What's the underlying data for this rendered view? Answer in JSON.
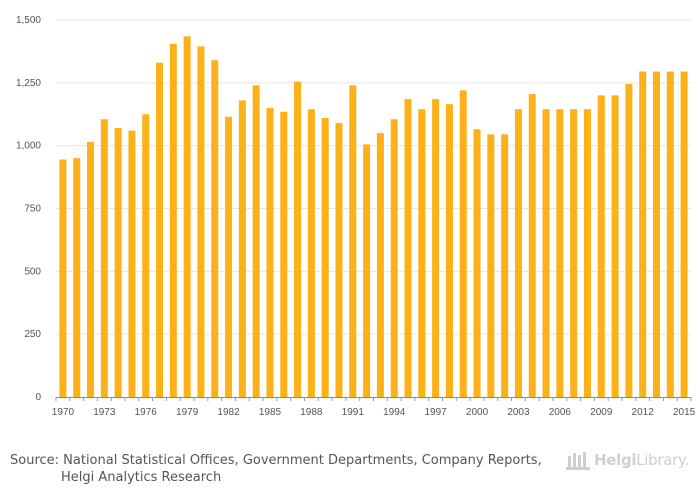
{
  "chart_data": {
    "type": "bar",
    "categories": [
      "1970",
      "1971",
      "1972",
      "1973",
      "1974",
      "1975",
      "1976",
      "1977",
      "1978",
      "1979",
      "1980",
      "1981",
      "1982",
      "1983",
      "1984",
      "1985",
      "1986",
      "1987",
      "1988",
      "1989",
      "1990",
      "1991",
      "1992",
      "1993",
      "1994",
      "1995",
      "1996",
      "1997",
      "1998",
      "1999",
      "2000",
      "2001",
      "2002",
      "2003",
      "2004",
      "2005",
      "2006",
      "2007",
      "2008",
      "2009",
      "2010",
      "2011",
      "2012",
      "2013",
      "2014",
      "2015"
    ],
    "values": [
      945,
      950,
      1015,
      1105,
      1070,
      1060,
      1125,
      1330,
      1405,
      1435,
      1395,
      1340,
      1115,
      1180,
      1240,
      1150,
      1135,
      1255,
      1145,
      1110,
      1090,
      1240,
      1005,
      1050,
      1105,
      1185,
      1145,
      1185,
      1165,
      1220,
      1065,
      1045,
      1045,
      1145,
      1205,
      1145,
      1145,
      1145,
      1145,
      1200,
      1200,
      1245,
      1295,
      1295,
      1295,
      1295
    ],
    "x_tick_labels": [
      "1970",
      "1973",
      "1976",
      "1979",
      "1982",
      "1985",
      "1988",
      "1991",
      "1994",
      "1997",
      "2000",
      "2003",
      "2006",
      "2009",
      "2012",
      "2015"
    ],
    "y_ticks": [
      0,
      250,
      500,
      750,
      1000,
      1250,
      1500
    ],
    "y_tick_labels": [
      "0",
      "250",
      "500",
      "750",
      "1,000",
      "1,250",
      "1,500"
    ],
    "ylim": [
      0,
      1500
    ],
    "title": "",
    "xlabel": "",
    "ylabel": "",
    "grid": true,
    "bar_color": "#FBB117"
  },
  "footer": {
    "source_line1": "Source: National Statistical Offices, Government Departments, Company Reports,",
    "source_line2": "Helgi Analytics Research",
    "logo_brand": "Helgi",
    "logo_suffix": "Library."
  }
}
